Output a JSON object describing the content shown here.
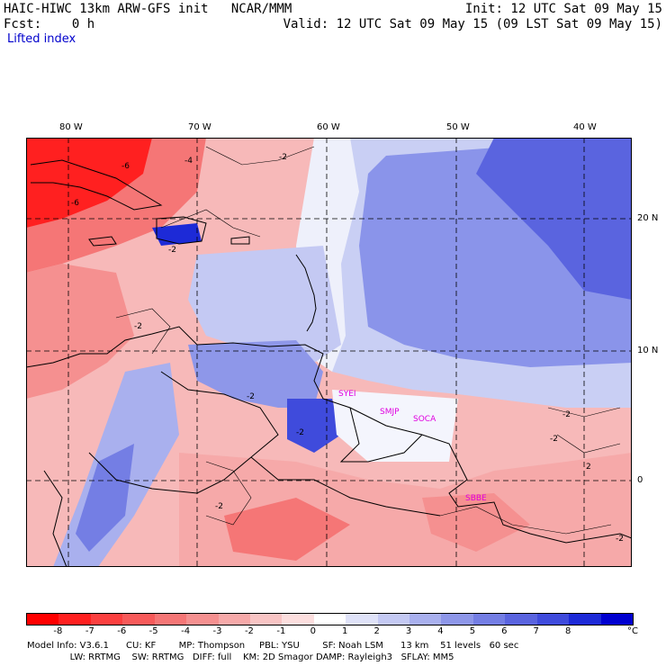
{
  "header": {
    "line1_left": "HAIC-HIWC 13km ARW-GFS init   NCAR/MMM",
    "line1_right": "Init: 12 UTC Sat 09 May 15",
    "line2_left": "Fcst:    0 h",
    "line2_right": "Valid: 12 UTC Sat 09 May 15 (09 LST Sat 09 May 15)",
    "field_name": "Lifted index"
  },
  "map": {
    "lon_labels": [
      "80 W",
      "70 W",
      "60 W",
      "50 W",
      "40 W"
    ],
    "lat_labels": [
      "20 N",
      "10 N",
      "0"
    ],
    "station_labels": [
      "SYEI",
      "SMJP",
      "SOCA",
      "SBBE"
    ],
    "contour_labels": [
      "-6",
      "-4",
      "-2",
      "-6",
      "-2",
      "-2",
      "-2",
      "-2",
      "-2",
      "-2",
      "-2",
      "-2",
      "2"
    ],
    "colors": {
      "strong_neg": "#ff0000",
      "mid_neg": "#f56e6e",
      "weak_neg": "#f6b6b6",
      "neutral": "#ffffff",
      "weak_pos": "#c9cff4",
      "mid_pos": "#8a94ea",
      "strong_pos": "#3f4bdc",
      "station": "#e000e0"
    }
  },
  "colorbar": {
    "labels": [
      "-8",
      "-7",
      "-6",
      "-5",
      "-4",
      "-3",
      "-2",
      "-1",
      "0",
      "1",
      "2",
      "3",
      "4",
      "5",
      "6",
      "7",
      "8"
    ],
    "unit": "°C",
    "colors": [
      "#ff0000",
      "#ff2020",
      "#fb3f3f",
      "#f75a5a",
      "#f57676",
      "#f59090",
      "#f6a9a9",
      "#f8c4c4",
      "#fcdede",
      "#ffffff",
      "#dfe2f8",
      "#c4c9f3",
      "#a9b0ee",
      "#8e97e9",
      "#747ee4",
      "#5a64df",
      "#3f4bdc",
      "#1d2ad7",
      "#0000d0"
    ]
  },
  "footer": {
    "line1": "Model Info: V3.6.1      CU: KF        MP: Thompson     PBL: YSU        SF: Noah LSM      13 km    51 levels   60 sec",
    "line2": "               LW: RRTMG    SW: RRTMG   DIFF: full    KM: 2D Smagor DAMP: Rayleigh3   SFLAY: MM5"
  }
}
